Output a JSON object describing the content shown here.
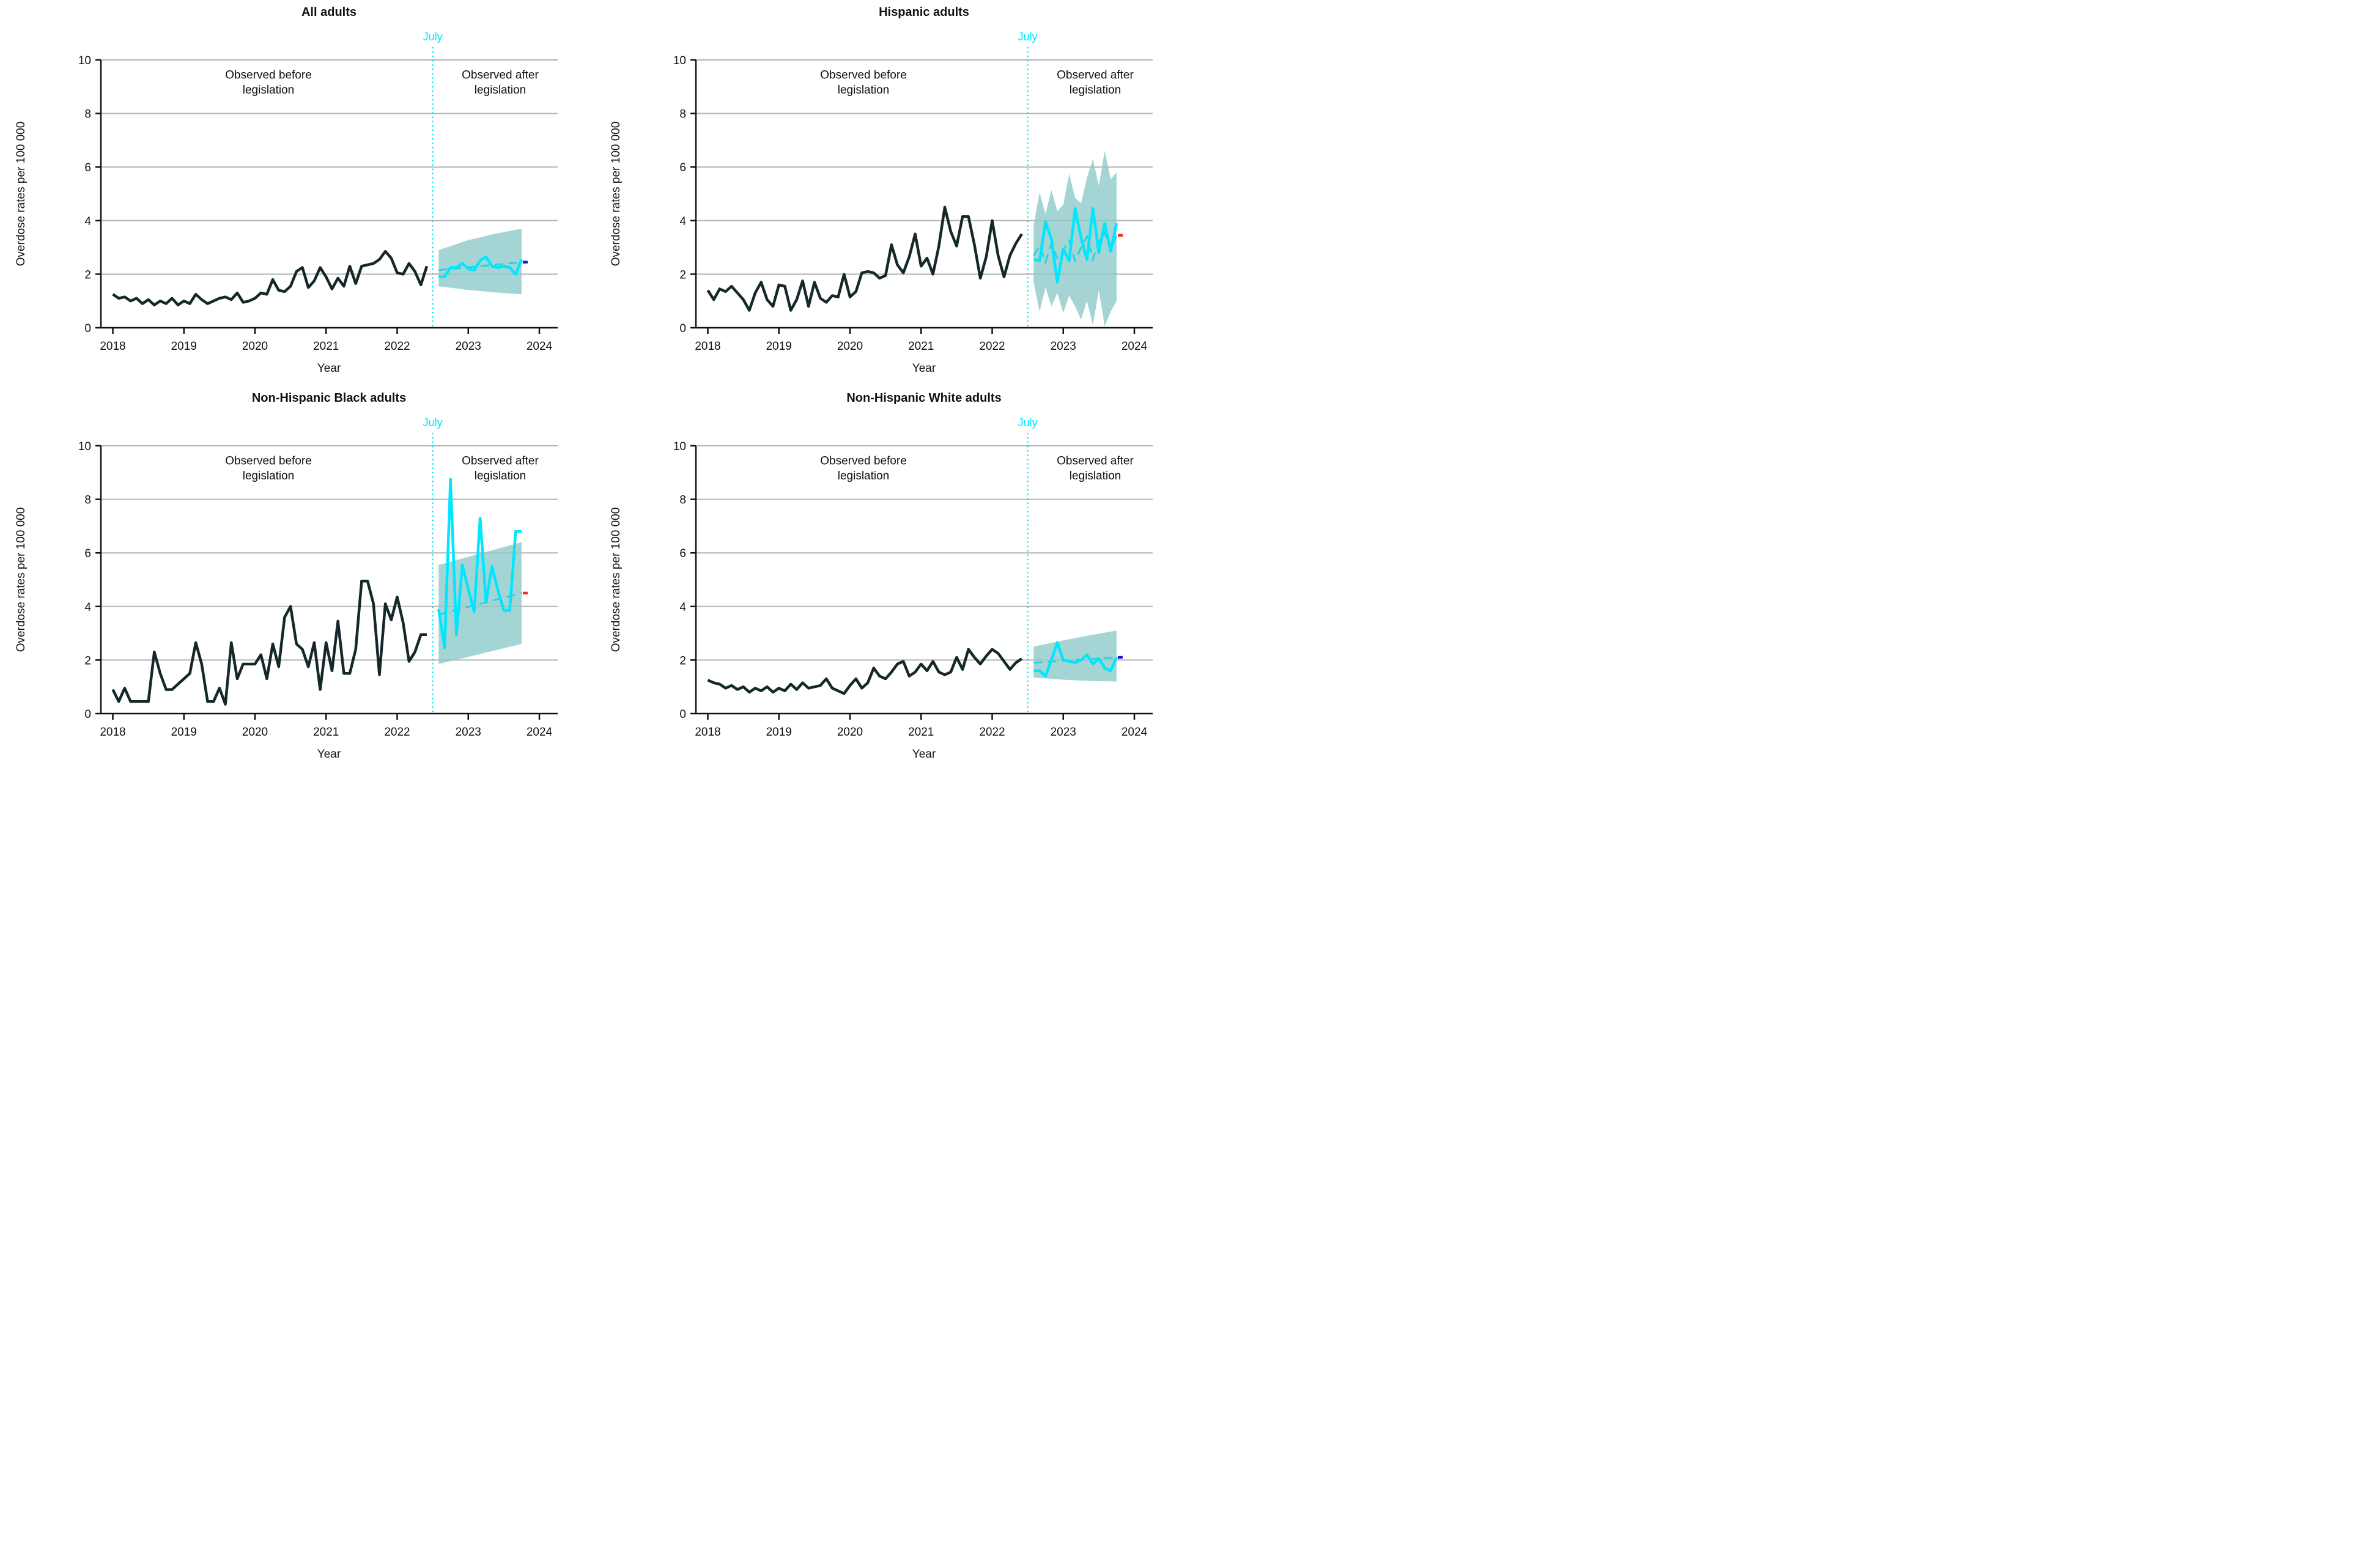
{
  "figure": {
    "y_axis_label": "Overdose rates per 100 000",
    "x_axis_label": "Year",
    "x_ticks": [
      "2018",
      "2019",
      "2020",
      "2021",
      "2022",
      "2023",
      "2024"
    ],
    "y_ticks": [
      "0",
      "2",
      "4",
      "6",
      "8",
      "10"
    ],
    "intervention_label": "July",
    "before_label": [
      "Observed before",
      "legislation"
    ],
    "after_label": [
      "Observed after",
      "legislation"
    ],
    "colors": {
      "observed_before": "#142829",
      "observed_after": "#00E6FF",
      "forecast_dashed": "#1FD4E6",
      "confidence_band": "#8FC9C9",
      "gridline": "#B3B3B3",
      "axis": "#111111",
      "intervention_line": "#00E6FF",
      "end_marker_blue": "#1A1ACC",
      "end_marker_red": "#E8340C",
      "title_text": "#111111"
    }
  },
  "chart_data": [
    {
      "type": "line",
      "title": "All adults",
      "xlabel": "Year",
      "ylabel": "Overdose rates per 100 000",
      "ylim": [
        0,
        10
      ],
      "x_tick_labels": [
        "2018",
        "2019",
        "2020",
        "2021",
        "2022",
        "2023",
        "2024"
      ],
      "intervention": "July 2022",
      "series": [
        {
          "name": "Observed before legislation",
          "color": "#142829",
          "months": "2018-01 to 2022-06",
          "values": [
            1.25,
            1.1,
            1.15,
            1.0,
            1.1,
            0.9,
            1.05,
            0.85,
            1.0,
            0.9,
            1.1,
            0.85,
            1.0,
            0.9,
            1.25,
            1.05,
            0.9,
            1.0,
            1.1,
            1.15,
            1.05,
            1.3,
            0.95,
            1.0,
            1.1,
            1.3,
            1.25,
            1.8,
            1.4,
            1.35,
            1.55,
            2.1,
            2.25,
            1.5,
            1.75,
            2.25,
            1.9,
            1.45,
            1.85,
            1.55,
            2.3,
            1.65,
            2.3,
            2.35,
            2.4,
            2.55,
            2.85,
            2.6,
            2.05,
            2.0,
            2.4,
            2.1,
            1.6,
            2.3
          ]
        },
        {
          "name": "Observed after legislation",
          "color": "#00E6FF",
          "months": "2022-08 to 2023-10",
          "values": [
            1.9,
            1.9,
            2.25,
            2.25,
            2.4,
            2.2,
            2.15,
            2.5,
            2.65,
            2.3,
            2.25,
            2.3,
            2.25,
            2.0,
            2.55
          ]
        },
        {
          "name": "Forecast",
          "style": "dashed",
          "color": "#1FD4E6",
          "values": [
            2.15,
            2.45
          ]
        },
        {
          "name": "95% CI band",
          "type": "band",
          "color": "#8FC9C9",
          "lower": [
            1.55,
            1.42,
            1.32,
            1.25
          ],
          "upper": [
            2.9,
            3.25,
            3.5,
            3.7
          ]
        }
      ],
      "end_marker_color": "#1A1ACC"
    },
    {
      "type": "line",
      "title": "Hispanic adults",
      "xlabel": "Year",
      "ylabel": "Overdose rates per 100 000",
      "ylim": [
        0,
        10
      ],
      "x_tick_labels": [
        "2018",
        "2019",
        "2020",
        "2021",
        "2022",
        "2023",
        "2024"
      ],
      "intervention": "July 2022",
      "series": [
        {
          "name": "Observed before legislation",
          "color": "#142829",
          "months": "2018-01 to 2022-06",
          "values": [
            1.4,
            1.05,
            1.45,
            1.35,
            1.55,
            1.3,
            1.05,
            0.65,
            1.3,
            1.7,
            1.05,
            0.8,
            1.6,
            1.55,
            0.65,
            1.05,
            1.75,
            0.8,
            1.7,
            1.1,
            0.95,
            1.2,
            1.15,
            2.0,
            1.15,
            1.35,
            2.05,
            2.1,
            2.05,
            1.85,
            1.95,
            3.1,
            2.35,
            2.05,
            2.65,
            3.5,
            2.3,
            2.6,
            2.0,
            3.05,
            4.5,
            3.6,
            3.05,
            4.15,
            4.15,
            3.1,
            1.85,
            2.65,
            4.0,
            2.7,
            1.9,
            2.7,
            3.15,
            3.5
          ]
        },
        {
          "name": "Observed after legislation",
          "color": "#00E6FF",
          "months": "2022-08 to 2023-10",
          "values": [
            2.55,
            2.5,
            3.95,
            3.3,
            1.7,
            2.95,
            2.5,
            4.45,
            3.35,
            2.55,
            4.45,
            2.8,
            3.9,
            2.85,
            3.9
          ]
        },
        {
          "name": "Forecast",
          "style": "dashed",
          "color": "#1FD4E6",
          "values": [
            2.7,
            3.05,
            2.45,
            3.15,
            2.6,
            2.9,
            3.25,
            2.5,
            3.0,
            3.4,
            2.55,
            3.25,
            3.55,
            2.9,
            3.45
          ]
        },
        {
          "name": "95% CI band",
          "type": "band",
          "color": "#8FC9C9",
          "lower": [
            1.7,
            0.6,
            1.5,
            0.8,
            1.3,
            0.55,
            1.2,
            0.8,
            0.3,
            1.0,
            0.1,
            1.4,
            0.05,
            0.6,
            1.0
          ],
          "upper": [
            3.85,
            5.05,
            4.25,
            5.15,
            4.35,
            4.6,
            5.75,
            4.85,
            4.65,
            5.6,
            6.3,
            5.3,
            6.6,
            5.55,
            5.8
          ]
        }
      ],
      "end_marker_color": "#E8340C"
    },
    {
      "type": "line",
      "title": "Non-Hispanic Black adults",
      "xlabel": "Year",
      "ylabel": "Overdose rates per 100 000",
      "ylim": [
        0,
        10
      ],
      "x_tick_labels": [
        "2018",
        "2019",
        "2020",
        "2021",
        "2022",
        "2023",
        "2024"
      ],
      "intervention": "July 2022",
      "series": [
        {
          "name": "Observed before legislation",
          "color": "#142829",
          "months": "2018-01 to 2022-06",
          "values": [
            0.9,
            0.45,
            0.95,
            0.45,
            0.45,
            0.45,
            0.45,
            2.3,
            1.5,
            0.9,
            0.9,
            1.1,
            1.3,
            1.5,
            2.65,
            1.85,
            0.45,
            0.45,
            0.95,
            0.35,
            2.65,
            1.3,
            1.85,
            1.85,
            1.85,
            2.2,
            1.3,
            2.6,
            1.75,
            3.6,
            4.0,
            2.6,
            2.4,
            1.75,
            2.65,
            0.9,
            2.65,
            1.6,
            3.45,
            1.5,
            1.5,
            2.4,
            4.95,
            4.95,
            4.1,
            1.45,
            4.1,
            3.5,
            4.35,
            3.4,
            1.95,
            2.3,
            2.95,
            2.95
          ]
        },
        {
          "name": "Observed after legislation",
          "color": "#00E6FF",
          "months": "2022-08 to 2023-10",
          "values": [
            3.9,
            2.45,
            8.75,
            2.95,
            5.55,
            4.65,
            3.8,
            7.3,
            4.15,
            5.5,
            4.6,
            3.85,
            3.85,
            6.8,
            6.8
          ]
        },
        {
          "name": "Forecast",
          "style": "dashed",
          "color": "#1FD4E6",
          "values": [
            3.7,
            4.5
          ]
        },
        {
          "name": "95% CI band",
          "type": "band",
          "color": "#8FC9C9",
          "lower": [
            1.85,
            2.6
          ],
          "upper": [
            5.55,
            6.4
          ]
        }
      ],
      "end_marker_color": "#E8340C"
    },
    {
      "type": "line",
      "title": "Non-Hispanic White adults",
      "xlabel": "Year",
      "ylabel": "Overdose rates per 100 000",
      "ylim": [
        0,
        10
      ],
      "x_tick_labels": [
        "2018",
        "2019",
        "2020",
        "2021",
        "2022",
        "2023",
        "2024"
      ],
      "intervention": "July 2022",
      "series": [
        {
          "name": "Observed before legislation",
          "color": "#142829",
          "months": "2018-01 to 2022-06",
          "values": [
            1.25,
            1.15,
            1.1,
            0.95,
            1.05,
            0.9,
            1.0,
            0.8,
            0.95,
            0.85,
            1.0,
            0.8,
            0.95,
            0.85,
            1.1,
            0.9,
            1.15,
            0.95,
            1.0,
            1.05,
            1.3,
            0.95,
            0.85,
            0.75,
            1.05,
            1.3,
            0.95,
            1.15,
            1.7,
            1.4,
            1.3,
            1.55,
            1.85,
            1.95,
            1.4,
            1.55,
            1.85,
            1.6,
            1.95,
            1.55,
            1.45,
            1.55,
            2.1,
            1.65,
            2.4,
            2.1,
            1.85,
            2.15,
            2.4,
            2.25,
            1.95,
            1.65,
            1.9,
            2.05
          ]
        },
        {
          "name": "Observed after legislation",
          "color": "#00E6FF",
          "months": "2022-08 to 2023-10",
          "values": [
            1.6,
            1.6,
            1.4,
            2.0,
            2.65,
            2.0,
            1.95,
            1.9,
            2.0,
            2.2,
            1.85,
            2.05,
            1.7,
            1.6,
            2.1
          ]
        },
        {
          "name": "Forecast",
          "style": "dashed",
          "color": "#1FD4E6",
          "values": [
            1.9,
            2.1
          ]
        },
        {
          "name": "95% CI band",
          "type": "band",
          "color": "#8FC9C9",
          "lower": [
            1.35,
            1.27,
            1.22,
            1.2
          ],
          "upper": [
            2.5,
            2.72,
            2.92,
            3.1
          ]
        }
      ],
      "end_marker_color": "#1A1ACC"
    }
  ]
}
